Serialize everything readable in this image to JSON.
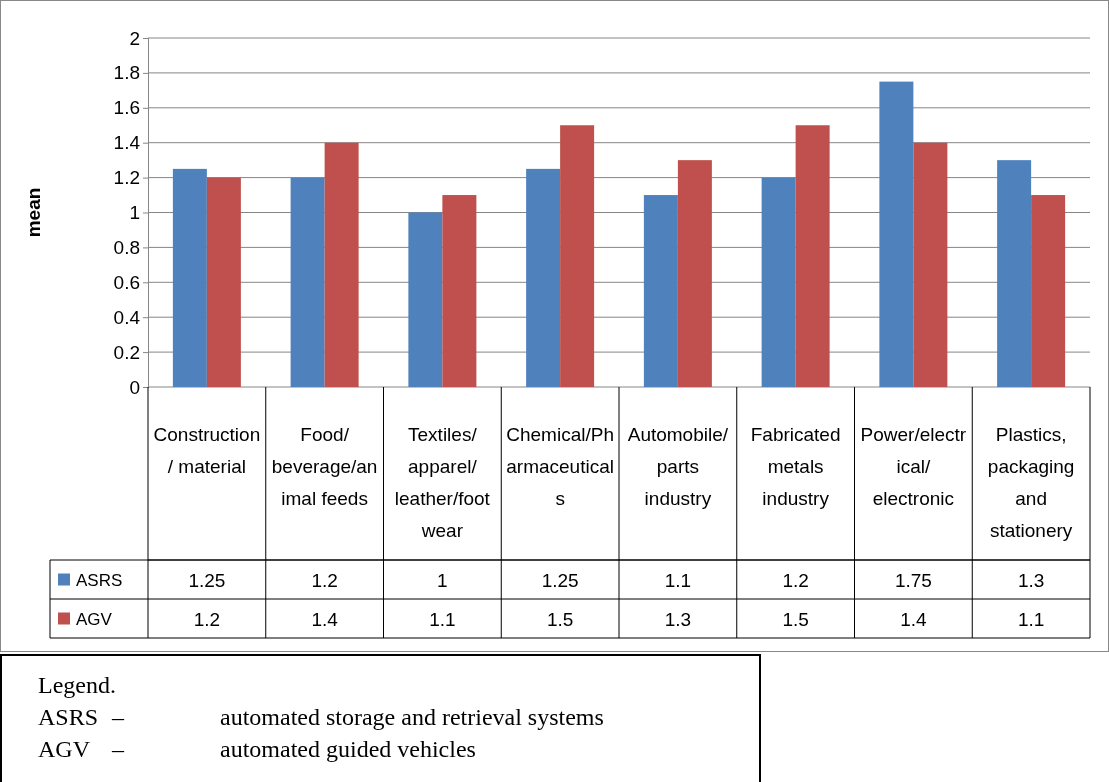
{
  "chart_data": {
    "type": "bar",
    "ylabel": "mean",
    "categories": [
      "Construction/ material",
      "Food/ beverage/animal feeds",
      "Textiles/ apparel/ leather/footwear",
      "Chemical/Pharmaceuticals",
      "Automobile/parts industry",
      "Fabricated metals industry",
      "Power/electrical/ electronic",
      "Plastics, packaging and stationery"
    ],
    "series": [
      {
        "name": "ASRS",
        "color": "#4f81bd",
        "values": [
          1.25,
          1.2,
          1,
          1.25,
          1.1,
          1.2,
          1.75,
          1.3
        ]
      },
      {
        "name": "AGV",
        "color": "#c0504d",
        "values": [
          1.2,
          1.4,
          1.1,
          1.5,
          1.3,
          1.5,
          1.4,
          1.1
        ]
      }
    ],
    "ylim": [
      0,
      2
    ],
    "yticks": [
      0,
      0.2,
      0.4,
      0.6,
      0.8,
      1,
      1.2,
      1.4,
      1.6,
      1.8,
      2
    ],
    "grid": "y",
    "data_labels": true,
    "legend": "bottom",
    "annotations": [
      "Legend.",
      "ASRS\t–\tautomated storage and retrieval systems",
      "AGV\t–\tautomated guided vehicles"
    ]
  }
}
